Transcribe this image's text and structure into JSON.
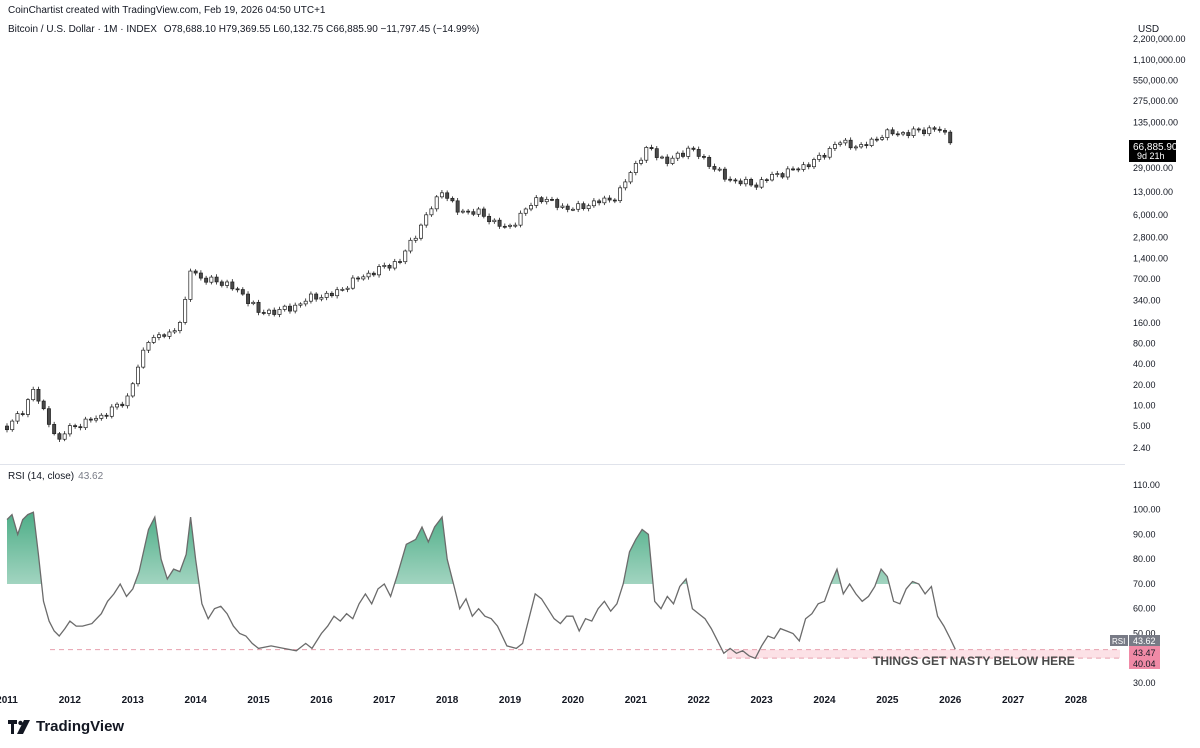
{
  "header": {
    "credit": "CoinChartist created with TradingView.com, Feb 19, 2026 04:50 UTC+1",
    "symbol": "Bitcoin / U.S. Dollar · 1M · INDEX",
    "ohlc": "O78,688.10  H79,369.55  L60,132.75  C66,885.90  −11,797.45 (−14.99%)"
  },
  "price_axis": {
    "currency": "USD",
    "last_price": "66,885.90",
    "countdown": "9d 21h"
  },
  "rsi_pane": {
    "title": "RSI (14, close)",
    "value": "43.62",
    "tag_label": "RSI",
    "tag_value": "43.62",
    "zone_upper": "43.47",
    "zone_lower": "40.04",
    "annotation": "THINGS GET NASTY BELOW HERE"
  },
  "brand": {
    "name": "TradingView"
  },
  "colors": {
    "candle_up": "#ffffff",
    "candle_down": "#4a4a4a",
    "outline": "#1e1e1e",
    "rsi_line": "#6b6b6b",
    "overbought_fill": "#2e9f72",
    "zone": "#f7a8b8",
    "tag": "#f08aa6"
  },
  "chart_data": [
    {
      "type": "candlestick",
      "scale": "log",
      "x_unit": "year",
      "xlim": [
        2011.0,
        2028.7
      ],
      "ylim": [
        1.6,
        3000000
      ],
      "y_ticks": [
        {
          "v": 2200000,
          "label": "2,200,000.00"
        },
        {
          "v": 1100000,
          "label": "1,100,000.00"
        },
        {
          "v": 550000,
          "label": "550,000.00"
        },
        {
          "v": 275000,
          "label": "275,000.00"
        },
        {
          "v": 135000,
          "label": "135,000.00"
        },
        {
          "v": 29000,
          "label": "29,000.00"
        },
        {
          "v": 13000,
          "label": "13,000.00"
        },
        {
          "v": 6000,
          "label": "6,000.00"
        },
        {
          "v": 2800,
          "label": "2,800.00"
        },
        {
          "v": 1400,
          "label": "1,400.00"
        },
        {
          "v": 700,
          "label": "700.00"
        },
        {
          "v": 340,
          "label": "340.00"
        },
        {
          "v": 160,
          "label": "160.00"
        },
        {
          "v": 80,
          "label": "80.00"
        },
        {
          "v": 40,
          "label": "40.00"
        },
        {
          "v": 20,
          "label": "20.00"
        },
        {
          "v": 10,
          "label": "10.00"
        },
        {
          "v": 5,
          "label": "5.00"
        },
        {
          "v": 2.4,
          "label": "2.40"
        }
      ],
      "monthly_close_waypoints": [
        [
          2011.0,
          5
        ],
        [
          2011.25,
          8
        ],
        [
          2011.42,
          18
        ],
        [
          2011.58,
          8
        ],
        [
          2011.83,
          3
        ],
        [
          2011.95,
          4.5
        ],
        [
          2012.5,
          7
        ],
        [
          2012.9,
          12
        ],
        [
          2013.25,
          95
        ],
        [
          2013.6,
          110
        ],
        [
          2013.8,
          200
        ],
        [
          2013.92,
          1000
        ],
        [
          2014.1,
          700
        ],
        [
          2014.5,
          600
        ],
        [
          2014.9,
          320
        ],
        [
          2015.0,
          220
        ],
        [
          2015.5,
          260
        ],
        [
          2015.85,
          380
        ],
        [
          2016.2,
          420
        ],
        [
          2016.5,
          650
        ],
        [
          2016.9,
          960
        ],
        [
          2017.25,
          1300
        ],
        [
          2017.6,
          4500
        ],
        [
          2017.92,
          14000
        ],
        [
          2018.15,
          7000
        ],
        [
          2018.5,
          6500
        ],
        [
          2018.95,
          3700
        ],
        [
          2019.45,
          11000
        ],
        [
          2019.95,
          7200
        ],
        [
          2020.25,
          8600
        ],
        [
          2020.7,
          11000
        ],
        [
          2020.95,
          29000
        ],
        [
          2021.2,
          58000
        ],
        [
          2021.5,
          35000
        ],
        [
          2021.85,
          57000
        ],
        [
          2022.1,
          38000
        ],
        [
          2022.45,
          20000
        ],
        [
          2022.9,
          16500
        ],
        [
          2023.2,
          23000
        ],
        [
          2023.6,
          29000
        ],
        [
          2023.95,
          42000
        ],
        [
          2024.2,
          70000
        ],
        [
          2024.6,
          59000
        ],
        [
          2024.95,
          93000
        ],
        [
          2025.3,
          94000
        ],
        [
          2025.75,
          110000
        ],
        [
          2025.95,
          87000
        ],
        [
          2026.08,
          66886
        ]
      ]
    },
    {
      "type": "line",
      "name": "RSI (14, close)",
      "x_unit": "year",
      "xlim": [
        2011.0,
        2028.7
      ],
      "ylim": [
        28,
        114
      ],
      "y_ticks": [
        110,
        100,
        90,
        80,
        70,
        60,
        50,
        40,
        30
      ],
      "x_ticks": [
        {
          "v": 2011,
          "label": "2011"
        },
        {
          "v": 2012,
          "label": "2012"
        },
        {
          "v": 2013,
          "label": "2013"
        },
        {
          "v": 2014,
          "label": "2014"
        },
        {
          "v": 2015,
          "label": "2015"
        },
        {
          "v": 2016,
          "label": "2016"
        },
        {
          "v": 2017,
          "label": "2017"
        },
        {
          "v": 2018,
          "label": "2018"
        },
        {
          "v": 2019,
          "label": "2019"
        },
        {
          "v": 2020,
          "label": "2020"
        },
        {
          "v": 2021,
          "label": "2021"
        },
        {
          "v": 2022,
          "label": "2022"
        },
        {
          "v": 2023,
          "label": "2023"
        },
        {
          "v": 2024,
          "label": "2024"
        },
        {
          "v": 2025,
          "label": "2025"
        },
        {
          "v": 2026,
          "label": "2026"
        },
        {
          "v": 2027,
          "label": "2027"
        },
        {
          "v": 2028,
          "label": "2028"
        }
      ],
      "overbought_level": 70,
      "support_zone": [
        40.04,
        43.47
      ],
      "points": [
        [
          2011.0,
          96
        ],
        [
          2011.08,
          98
        ],
        [
          2011.17,
          90
        ],
        [
          2011.25,
          96
        ],
        [
          2011.33,
          98
        ],
        [
          2011.42,
          99
        ],
        [
          2011.5,
          82
        ],
        [
          2011.58,
          63
        ],
        [
          2011.67,
          55
        ],
        [
          2011.75,
          51
        ],
        [
          2011.83,
          49
        ],
        [
          2011.92,
          52
        ],
        [
          2012.0,
          55
        ],
        [
          2012.1,
          53
        ],
        [
          2012.2,
          53
        ],
        [
          2012.35,
          54
        ],
        [
          2012.5,
          58
        ],
        [
          2012.6,
          63
        ],
        [
          2012.7,
          66
        ],
        [
          2012.8,
          70
        ],
        [
          2012.9,
          65
        ],
        [
          2013.0,
          68
        ],
        [
          2013.1,
          75
        ],
        [
          2013.25,
          92
        ],
        [
          2013.35,
          97
        ],
        [
          2013.45,
          80
        ],
        [
          2013.55,
          72
        ],
        [
          2013.65,
          76
        ],
        [
          2013.75,
          75
        ],
        [
          2013.85,
          82
        ],
        [
          2013.92,
          97
        ],
        [
          2014.0,
          80
        ],
        [
          2014.1,
          62
        ],
        [
          2014.2,
          56
        ],
        [
          2014.3,
          60
        ],
        [
          2014.4,
          61
        ],
        [
          2014.5,
          58
        ],
        [
          2014.6,
          53
        ],
        [
          2014.7,
          50
        ],
        [
          2014.8,
          49
        ],
        [
          2014.9,
          46
        ],
        [
          2015.0,
          44
        ],
        [
          2015.2,
          45
        ],
        [
          2015.4,
          44
        ],
        [
          2015.6,
          43
        ],
        [
          2015.75,
          46
        ],
        [
          2015.85,
          44
        ],
        [
          2016.0,
          50
        ],
        [
          2016.1,
          53
        ],
        [
          2016.2,
          57
        ],
        [
          2016.3,
          55
        ],
        [
          2016.4,
          58
        ],
        [
          2016.5,
          56
        ],
        [
          2016.6,
          62
        ],
        [
          2016.7,
          66
        ],
        [
          2016.8,
          62
        ],
        [
          2016.9,
          68
        ],
        [
          2017.0,
          70
        ],
        [
          2017.1,
          65
        ],
        [
          2017.2,
          73
        ],
        [
          2017.35,
          86
        ],
        [
          2017.5,
          88
        ],
        [
          2017.6,
          93
        ],
        [
          2017.7,
          87
        ],
        [
          2017.8,
          93
        ],
        [
          2017.92,
          97
        ],
        [
          2018.0,
          80
        ],
        [
          2018.1,
          70
        ],
        [
          2018.2,
          60
        ],
        [
          2018.3,
          64
        ],
        [
          2018.4,
          57
        ],
        [
          2018.5,
          60
        ],
        [
          2018.6,
          57
        ],
        [
          2018.7,
          56
        ],
        [
          2018.8,
          53
        ],
        [
          2018.95,
          45
        ],
        [
          2019.1,
          44
        ],
        [
          2019.2,
          46
        ],
        [
          2019.3,
          56
        ],
        [
          2019.4,
          66
        ],
        [
          2019.5,
          64
        ],
        [
          2019.6,
          60
        ],
        [
          2019.7,
          56
        ],
        [
          2019.8,
          54
        ],
        [
          2019.9,
          57
        ],
        [
          2020.0,
          57
        ],
        [
          2020.1,
          51
        ],
        [
          2020.2,
          56
        ],
        [
          2020.3,
          55
        ],
        [
          2020.4,
          60
        ],
        [
          2020.5,
          63
        ],
        [
          2020.6,
          59
        ],
        [
          2020.7,
          62
        ],
        [
          2020.8,
          70
        ],
        [
          2020.9,
          83
        ],
        [
          2021.0,
          88
        ],
        [
          2021.1,
          92
        ],
        [
          2021.2,
          90
        ],
        [
          2021.3,
          63
        ],
        [
          2021.4,
          60
        ],
        [
          2021.5,
          65
        ],
        [
          2021.6,
          62
        ],
        [
          2021.7,
          69
        ],
        [
          2021.8,
          72
        ],
        [
          2021.9,
          60
        ],
        [
          2022.0,
          58
        ],
        [
          2022.1,
          56
        ],
        [
          2022.2,
          52
        ],
        [
          2022.3,
          47
        ],
        [
          2022.4,
          42
        ],
        [
          2022.5,
          44
        ],
        [
          2022.6,
          42
        ],
        [
          2022.7,
          43
        ],
        [
          2022.8,
          41
        ],
        [
          2022.9,
          40
        ],
        [
          2023.0,
          45
        ],
        [
          2023.1,
          49
        ],
        [
          2023.2,
          48
        ],
        [
          2023.3,
          52
        ],
        [
          2023.4,
          51
        ],
        [
          2023.5,
          50
        ],
        [
          2023.6,
          47
        ],
        [
          2023.7,
          56
        ],
        [
          2023.8,
          58
        ],
        [
          2023.9,
          62
        ],
        [
          2024.0,
          63
        ],
        [
          2024.1,
          70
        ],
        [
          2024.2,
          76
        ],
        [
          2024.3,
          66
        ],
        [
          2024.4,
          70
        ],
        [
          2024.5,
          66
        ],
        [
          2024.6,
          63
        ],
        [
          2024.7,
          65
        ],
        [
          2024.8,
          69
        ],
        [
          2024.9,
          76
        ],
        [
          2025.0,
          73
        ],
        [
          2025.1,
          63
        ],
        [
          2025.2,
          62
        ],
        [
          2025.3,
          68
        ],
        [
          2025.4,
          71
        ],
        [
          2025.5,
          70
        ],
        [
          2025.6,
          66
        ],
        [
          2025.7,
          69
        ],
        [
          2025.8,
          57
        ],
        [
          2025.9,
          53
        ],
        [
          2026.0,
          48
        ],
        [
          2026.08,
          43.62
        ]
      ]
    }
  ]
}
